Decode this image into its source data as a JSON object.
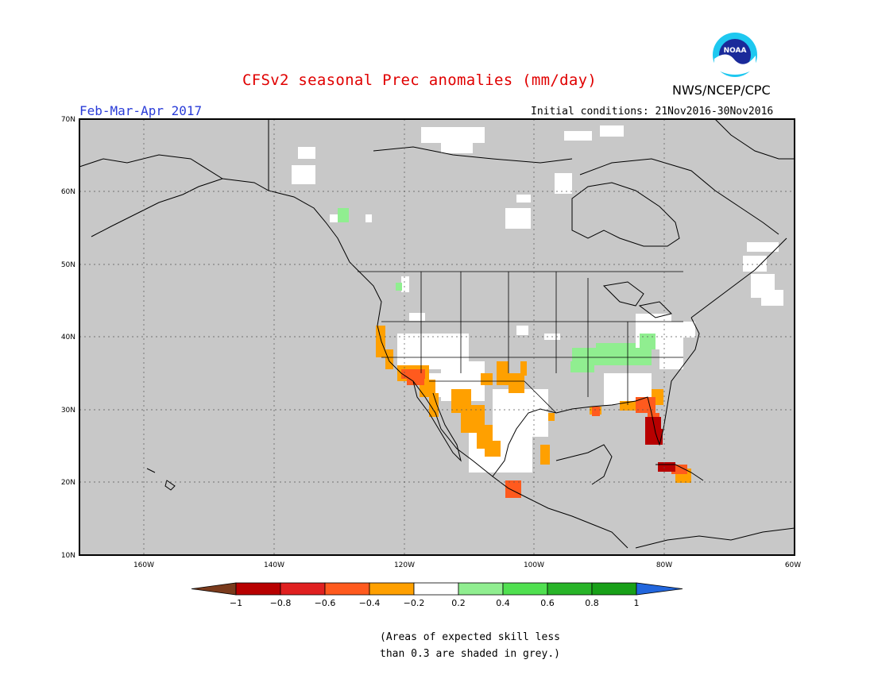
{
  "header": {
    "title": "CFSv2 seasonal Prec anomalies (mm/day)",
    "season": "Feb-Mar-Apr 2017",
    "initial_conditions": "Initial conditions: 21Nov2016-30Nov2016",
    "agency": "NWS/NCEP/CPC",
    "logo_text": "NOAA"
  },
  "map": {
    "lat_labels": [
      "70N",
      "60N",
      "50N",
      "40N",
      "30N",
      "20N",
      "10N"
    ],
    "lon_labels": [
      "160W",
      "140W",
      "120W",
      "100W",
      "80W",
      "60W"
    ],
    "background_color": "#c8c8c8",
    "coast_color": "#000000",
    "grid": "dotted"
  },
  "colorbar": {
    "labels": [
      "-1",
      "-0.8",
      "-0.6",
      "-0.4",
      "-0.2",
      "0.2",
      "0.4",
      "0.6",
      "0.8",
      "1"
    ],
    "colors": [
      "#7a3a1c",
      "#b80000",
      "#e02020",
      "#ff5a1e",
      "#ffa000",
      "#ffffff",
      "#90ee90",
      "#50e050",
      "#28b428",
      "#18a018",
      "#2266dd"
    ]
  },
  "footnote": {
    "line1": "(Areas of expected skill less",
    "line2": "than 0.3 are shaded in grey.)"
  }
}
